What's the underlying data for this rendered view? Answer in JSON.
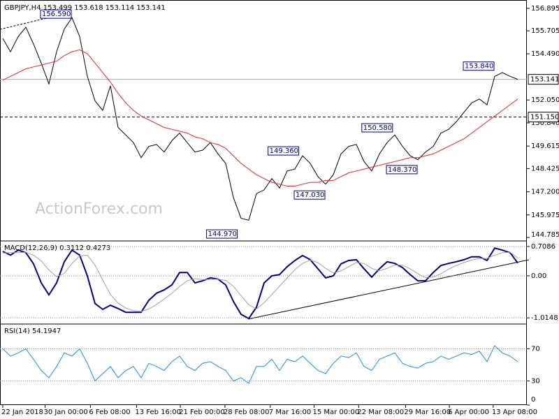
{
  "chart_data": [
    {
      "type": "line",
      "title": "GBPJPY,H4  153.499 153.618 153.114 153.141",
      "watermark": "ActionForex.com",
      "xlim": [
        -0.36,
        68.18
      ],
      "ylim": [
        144.64,
        157.26
      ],
      "yticks": [
        156.895,
        155.705,
        {
          "value": 154.49,
          "label": "154.490"
        },
        {
          "value": 152.05,
          "label": "152.050"
        },
        {
          "value": 150.84,
          "label": "150.840"
        },
        149.615,
        148.425,
        {
          "value": 147.2,
          "label": "147.200"
        },
        145.975,
        144.785
      ],
      "series": [
        {
          "color": "#000000",
          "values": [
            155.3,
            154.6,
            155.4,
            155.9,
            155.0,
            154.0,
            152.9,
            154.6,
            155.8,
            156.4,
            155.4,
            153.3,
            152.0,
            151.5,
            152.8,
            150.6,
            150.2,
            149.8,
            149.0,
            149.6,
            149.7,
            149.3,
            149.9,
            150.3,
            149.8,
            149.3,
            149.4,
            149.8,
            149.2,
            148.7,
            146.9,
            145.8,
            145.7,
            147.1,
            147.3,
            147.9,
            147.4,
            148.3,
            148.4,
            149.1,
            148.7,
            148.0,
            147.6,
            148.1,
            149.2,
            149.6,
            149.7,
            148.8,
            148.3,
            149.2,
            149.8,
            150.2,
            149.6,
            149.1,
            148.9,
            149.3,
            149.6,
            150.3,
            150.5,
            150.9,
            151.4,
            151.9,
            152.1,
            151.8,
            153.3,
            153.5,
            153.3,
            153.141
          ]
        },
        {
          "color": "#e0262a",
          "values": [
            153.1,
            153.3,
            153.5,
            153.7,
            153.8,
            153.9,
            154.0,
            154.1,
            154.4,
            154.6,
            154.7,
            154.5,
            154.0,
            153.5,
            153.0,
            152.4,
            151.9,
            151.5,
            151.2,
            151.0,
            150.8,
            150.6,
            150.5,
            150.4,
            150.3,
            150.1,
            150.0,
            149.8,
            149.7,
            149.5,
            149.1,
            148.7,
            148.4,
            148.1,
            147.9,
            147.7,
            147.6,
            147.5,
            147.5,
            147.6,
            147.7,
            147.7,
            147.8,
            147.8,
            148.0,
            148.2,
            148.3,
            148.4,
            148.5,
            148.6,
            148.7,
            148.8,
            148.9,
            149.0,
            149.0,
            149.1,
            149.2,
            149.4,
            149.6,
            149.8,
            150.0,
            150.3,
            150.6,
            150.9,
            151.2,
            151.5,
            151.8,
            152.1
          ]
        }
      ],
      "hlines": [
        {
          "value": 153.141,
          "label": "153.141",
          "style": "solid"
        },
        {
          "value": 151.15,
          "label": "151.150",
          "style": "dashed"
        }
      ],
      "annotations": [
        {
          "value": 156.59,
          "label": "156.590",
          "x": 9
        },
        {
          "value": 153.84,
          "label": "153.840",
          "x": 64
        },
        {
          "value": 150.58,
          "label": "150.580",
          "x": 50.8
        },
        {
          "value": 149.36,
          "label": "149.360",
          "x": 38.6
        },
        {
          "value": 148.37,
          "label": "148.370",
          "x": 54
        },
        {
          "value": 147.03,
          "label": "147.030",
          "x": 42
        },
        {
          "value": 144.97,
          "label": "144.970",
          "x": 30.6
        }
      ]
    },
    {
      "type": "line",
      "title": "MACD(12,26,9) 0.3112 0.4273",
      "xlim": [
        -0.36,
        68.18
      ],
      "ylim": [
        -1.147,
        0.826
      ],
      "yticks": [
        0.7086,
        {
          "value": 0,
          "label": "0.00"
        },
        -1.0148
      ],
      "series": [
        {
          "color": "#000080",
          "values": [
            0.59,
            0.5,
            0.62,
            0.56,
            0.29,
            -0.17,
            -0.46,
            -0.17,
            0.34,
            0.62,
            0.5,
            0,
            -0.67,
            -0.81,
            -0.71,
            -0.79,
            -0.88,
            -0.88,
            -0.88,
            -0.59,
            -0.42,
            -0.34,
            -0.22,
            0.08,
            0.08,
            -0.17,
            -0.12,
            -0.05,
            -0.08,
            -0.22,
            -0.62,
            -0.93,
            -1.03,
            -0.76,
            -0.17,
            0,
            0.03,
            0.22,
            0.37,
            0.49,
            0.39,
            0.17,
            -0.05,
            0,
            0.29,
            0.37,
            0.39,
            0.17,
            -0.03,
            0.17,
            0.34,
            0.3,
            0.2,
            0.03,
            -0.12,
            -0.12,
            0.08,
            0.25,
            0.3,
            0.34,
            0.39,
            0.46,
            0.46,
            0.37,
            0.67,
            0.62,
            0.56,
            0.31
          ]
        },
        {
          "color": "#a0a0a0",
          "values": [
            0.55,
            0.56,
            0.56,
            0.57,
            0.5,
            0.36,
            0.14,
            -0.02,
            0.06,
            0.3,
            0.48,
            0.5,
            0.26,
            -0.1,
            -0.45,
            -0.66,
            -0.78,
            -0.84,
            -0.86,
            -0.8,
            -0.69,
            -0.56,
            -0.42,
            -0.26,
            -0.12,
            -0.07,
            -0.09,
            -0.09,
            -0.08,
            -0.11,
            -0.25,
            -0.48,
            -0.7,
            -0.8,
            -0.65,
            -0.45,
            -0.25,
            -0.05,
            0.15,
            0.3,
            0.38,
            0.32,
            0.18,
            0.07,
            0.12,
            0.22,
            0.32,
            0.3,
            0.18,
            0.12,
            0.18,
            0.26,
            0.26,
            0.17,
            0.05,
            -0.04,
            -0.03,
            0.05,
            0.16,
            0.25,
            0.32,
            0.38,
            0.42,
            0.42,
            0.5,
            0.56,
            0.57,
            0.43
          ]
        }
      ]
    },
    {
      "type": "line",
      "title": "RSI(14) 54.1947",
      "xlim": [
        -0.36,
        68.18
      ],
      "ylim": [
        0,
        100
      ],
      "yticks": [
        70,
        30,
        0
      ],
      "xticks": [
        {
          "value": 0,
          "label": "22 Jan 2018"
        },
        {
          "value": 5.5,
          "label": "30 Jan 00:00"
        },
        {
          "value": 11.4,
          "label": "6 Feb 08:00"
        },
        {
          "value": 17.4,
          "label": "13 Feb 16:00"
        },
        {
          "value": 23.1,
          "label": "21 Feb 00:00"
        },
        {
          "value": 28.9,
          "label": "28 Feb 08:00"
        },
        {
          "value": 34.8,
          "label": "7 Mar 16:00"
        },
        {
          "value": 40.5,
          "label": "15 Mar 00:00"
        },
        {
          "value": 46.3,
          "label": "22 Mar 08:00"
        },
        {
          "value": 52.4,
          "label": "29 Mar 16:00"
        },
        {
          "value": 58.1,
          "label": "6 Apr 00:00"
        },
        {
          "value": 63.8,
          "label": "13 Apr 08:00"
        }
      ],
      "series": [
        {
          "color": "#1e8fe0",
          "values": [
            70,
            61,
            65,
            70,
            57,
            43,
            34,
            48,
            65,
            61,
            70,
            52,
            30,
            39,
            48,
            34,
            43,
            48,
            34,
            52,
            48,
            43,
            54,
            61,
            48,
            43,
            52,
            54,
            48,
            43,
            30,
            34,
            27,
            48,
            48,
            57,
            43,
            57,
            54,
            61,
            52,
            43,
            39,
            52,
            61,
            59,
            65,
            48,
            43,
            57,
            61,
            65,
            52,
            48,
            46,
            52,
            54,
            61,
            57,
            61,
            65,
            63,
            67,
            54,
            74,
            65,
            61,
            54
          ]
        }
      ]
    }
  ]
}
